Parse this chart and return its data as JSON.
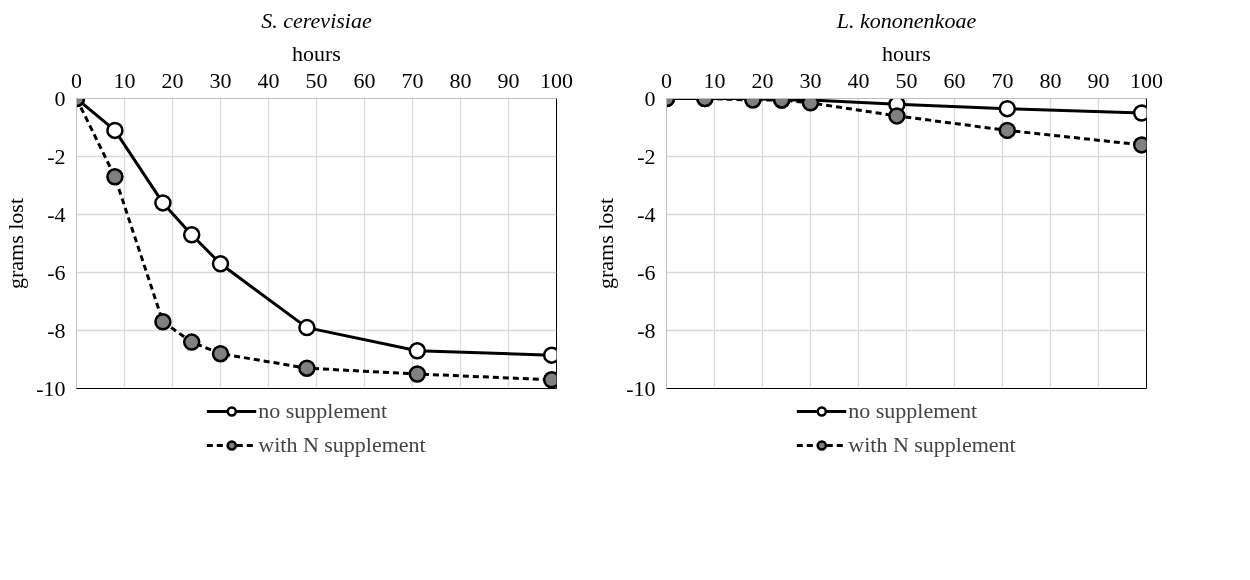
{
  "chart_data": [
    {
      "type": "line",
      "title": "S. cerevisiae",
      "xlabel": "hours",
      "ylabel": "grams lost",
      "x": [
        0,
        8,
        18,
        24,
        30,
        48,
        71,
        99
      ],
      "xlim": [
        0,
        100
      ],
      "xticks": [
        0,
        10,
        20,
        30,
        40,
        50,
        60,
        70,
        80,
        90,
        100
      ],
      "ylim": [
        -10,
        0
      ],
      "yticks": [
        -10,
        -8,
        -6,
        -4,
        -2,
        0
      ],
      "grid": true,
      "legend": "bottom",
      "marker": "circle",
      "series": [
        {
          "name": "no supplement",
          "color": "#ffffff",
          "line_style": "solid",
          "values": [
            0,
            -1.1,
            -3.6,
            -4.7,
            -5.7,
            -7.9,
            -8.7,
            -8.85
          ]
        },
        {
          "name": "with N supplement",
          "color": "#808080",
          "line_style": "dashed",
          "values": [
            0,
            -2.7,
            -7.7,
            -8.4,
            -8.8,
            -9.3,
            -9.5,
            -9.7
          ]
        }
      ]
    },
    {
      "type": "line",
      "title": "L. kononenkoae",
      "xlabel": "hours",
      "ylabel": "grams lost",
      "x": [
        0,
        8,
        18,
        24,
        30,
        48,
        71,
        99
      ],
      "xlim": [
        0,
        100
      ],
      "xticks": [
        0,
        10,
        20,
        30,
        40,
        50,
        60,
        70,
        80,
        90,
        100
      ],
      "ylim": [
        -10,
        0
      ],
      "yticks": [
        -10,
        -8,
        -6,
        -4,
        -2,
        0
      ],
      "grid": true,
      "legend": "bottom",
      "marker": "circle",
      "series": [
        {
          "name": "no supplement",
          "color": "#ffffff",
          "line_style": "solid",
          "values": [
            0,
            0,
            0,
            -0.05,
            -0.05,
            -0.2,
            -0.35,
            -0.5
          ]
        },
        {
          "name": "with N supplement",
          "color": "#808080",
          "line_style": "dashed",
          "values": [
            0,
            0,
            -0.05,
            -0.05,
            -0.15,
            -0.6,
            -1.1,
            -1.6
          ]
        }
      ]
    }
  ]
}
